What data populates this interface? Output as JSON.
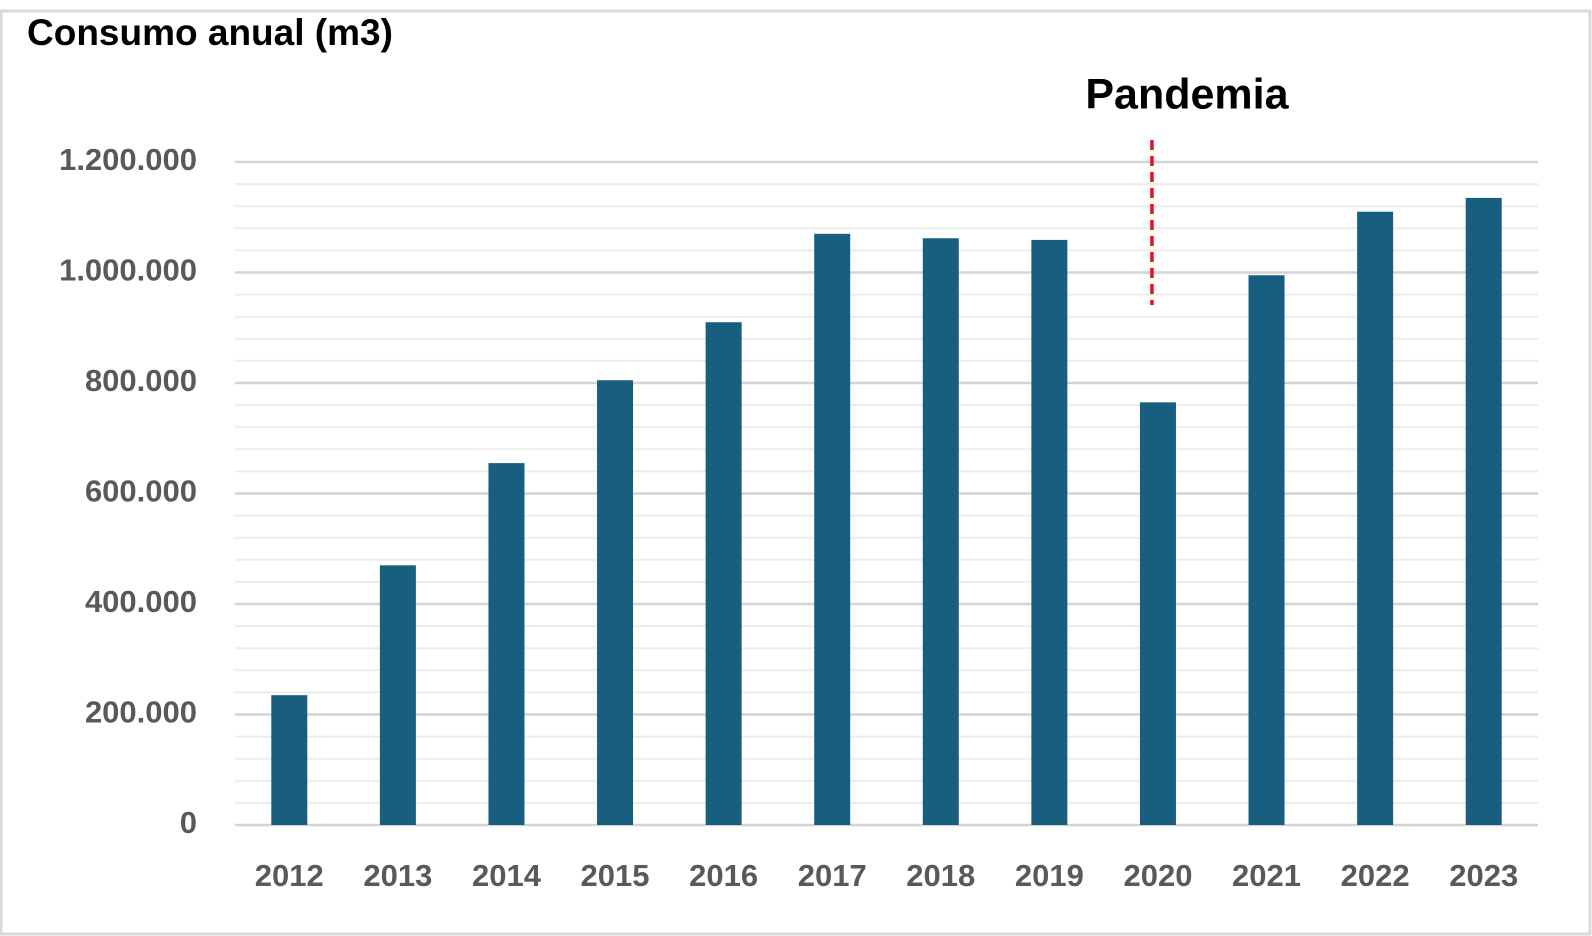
{
  "chart_data": {
    "type": "bar",
    "title": "Consumo anual (m3)",
    "categories": [
      "2012",
      "2013",
      "2014",
      "2015",
      "2016",
      "2017",
      "2018",
      "2019",
      "2020",
      "2021",
      "2022",
      "2023"
    ],
    "values": [
      235000,
      470000,
      655000,
      805000,
      910000,
      1070000,
      1062000,
      1059000,
      765000,
      995000,
      1110000,
      1135000
    ],
    "color": "#175e7f",
    "ylim": [
      0,
      1200000
    ],
    "yticks": [
      0,
      {
        "value": 200000,
        "label": "200.000"
      },
      {
        "value": 400000,
        "label": "400.000"
      },
      {
        "value": 600000,
        "label": "600.000"
      },
      {
        "value": 800000,
        "label": "800.000"
      },
      {
        "value": 1000000,
        "label": "1.000.000"
      },
      {
        "value": 1200000,
        "label": "1.200.000"
      }
    ],
    "grid": true,
    "minor_grid": true,
    "annotation": {
      "text": "Pandemia",
      "x": "2020",
      "color": "#e0141e"
    }
  }
}
